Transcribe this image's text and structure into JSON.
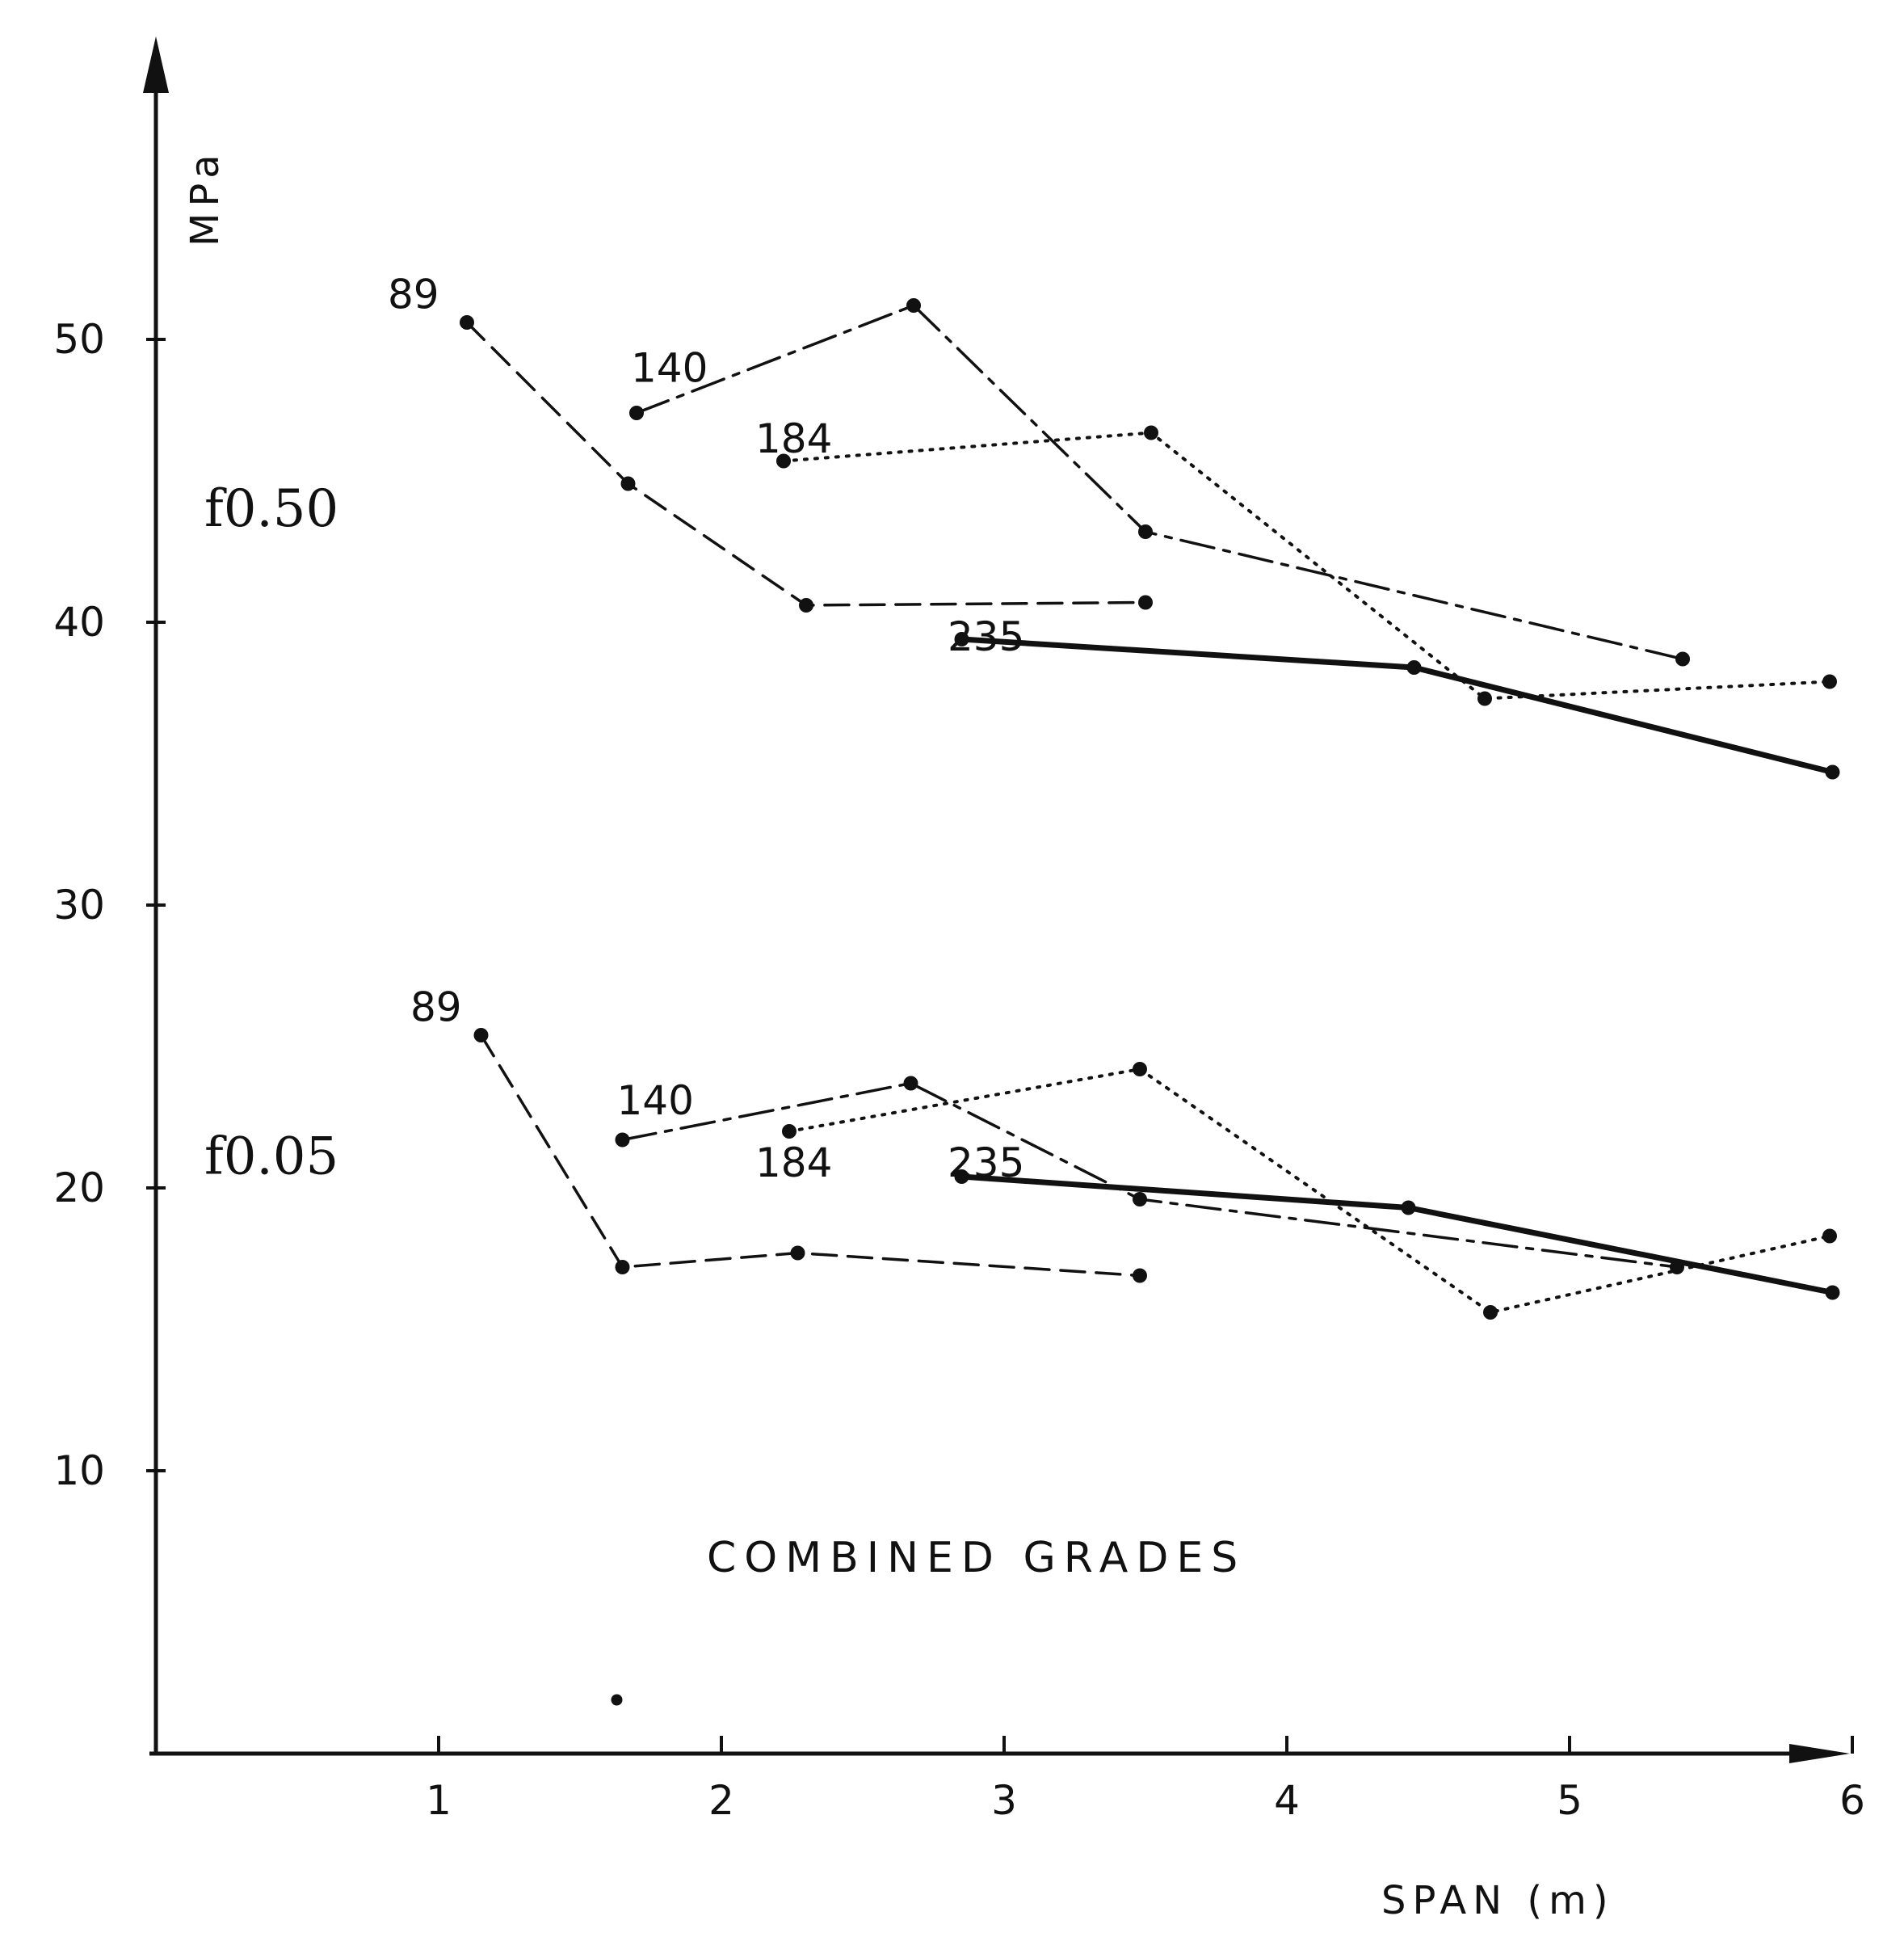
{
  "chart_data": {
    "type": "line",
    "title": "COMBINED GRADES",
    "xlabel": "SPAN (m)",
    "ylabel": "MPa",
    "xlim": [
      0,
      6
    ],
    "ylim": [
      0,
      60
    ],
    "x_ticks": [
      {
        "value": 1,
        "label": "1"
      },
      {
        "value": 2,
        "label": "2"
      },
      {
        "value": 3,
        "label": "3"
      },
      {
        "value": 4,
        "label": "4"
      },
      {
        "value": 5,
        "label": "5"
      },
      {
        "value": 6,
        "label": "6"
      }
    ],
    "y_ticks": [
      {
        "value": 10,
        "label": "10"
      },
      {
        "value": 20,
        "label": "20"
      },
      {
        "value": 30,
        "label": "30"
      },
      {
        "value": 40,
        "label": "40"
      },
      {
        "value": 50,
        "label": "50"
      }
    ],
    "grid": false,
    "groups": [
      {
        "label": "f0.50",
        "anchor": {
          "x": 0.6,
          "y": 43.4
        }
      },
      {
        "label": "f0.05",
        "anchor": {
          "x": 0.6,
          "y": 20.5
        }
      }
    ],
    "series": [
      {
        "group": "f0.50",
        "name": "89",
        "style": "dashed",
        "label_at": {
          "x": 0.82,
          "y": 51.1
        },
        "points": [
          {
            "x": 1.1,
            "y": 50.6
          },
          {
            "x": 1.67,
            "y": 44.9
          },
          {
            "x": 2.3,
            "y": 40.6
          },
          {
            "x": 3.5,
            "y": 40.7
          }
        ]
      },
      {
        "group": "f0.50",
        "name": "140",
        "style": "dash-dot",
        "label_at": {
          "x": 1.68,
          "y": 48.5
        },
        "points": [
          {
            "x": 1.7,
            "y": 47.4
          },
          {
            "x": 2.68,
            "y": 51.2
          },
          {
            "x": 3.5,
            "y": 43.2
          },
          {
            "x": 5.4,
            "y": 38.7
          }
        ]
      },
      {
        "group": "f0.50",
        "name": "184",
        "style": "dotted",
        "label_at": {
          "x": 2.12,
          "y": 46.0
        },
        "points": [
          {
            "x": 2.22,
            "y": 45.7
          },
          {
            "x": 3.52,
            "y": 46.7
          },
          {
            "x": 4.7,
            "y": 37.3
          },
          {
            "x": 5.92,
            "y": 37.9
          }
        ]
      },
      {
        "group": "f0.50",
        "name": "235",
        "style": "solid-bold",
        "label_at": {
          "x": 2.8,
          "y": 39.0
        },
        "points": [
          {
            "x": 2.85,
            "y": 39.4
          },
          {
            "x": 4.45,
            "y": 38.4
          },
          {
            "x": 5.93,
            "y": 34.7
          }
        ]
      },
      {
        "group": "f0.05",
        "name": "89",
        "style": "dashed",
        "label_at": {
          "x": 0.9,
          "y": 25.9
        },
        "points": [
          {
            "x": 1.15,
            "y": 25.4
          },
          {
            "x": 1.65,
            "y": 17.2
          },
          {
            "x": 2.27,
            "y": 17.7
          },
          {
            "x": 3.48,
            "y": 16.9
          }
        ]
      },
      {
        "group": "f0.05",
        "name": "140",
        "style": "dash-dot",
        "label_at": {
          "x": 1.63,
          "y": 22.6
        },
        "points": [
          {
            "x": 1.65,
            "y": 21.7
          },
          {
            "x": 2.67,
            "y": 23.7
          },
          {
            "x": 3.48,
            "y": 19.6
          },
          {
            "x": 5.38,
            "y": 17.2
          }
        ]
      },
      {
        "group": "f0.05",
        "name": "184",
        "style": "dotted",
        "label_at": {
          "x": 2.12,
          "y": 20.4
        },
        "points": [
          {
            "x": 2.24,
            "y": 22.0
          },
          {
            "x": 3.48,
            "y": 24.2
          },
          {
            "x": 4.72,
            "y": 15.6
          },
          {
            "x": 5.92,
            "y": 18.3
          }
        ]
      },
      {
        "group": "f0.05",
        "name": "235",
        "style": "solid-bold",
        "label_at": {
          "x": 2.8,
          "y": 20.4
        },
        "points": [
          {
            "x": 2.85,
            "y": 20.4
          },
          {
            "x": 4.43,
            "y": 19.3
          },
          {
            "x": 5.93,
            "y": 16.3
          }
        ]
      }
    ],
    "stray_points": [
      {
        "x": 1.63,
        "y": 1.9
      }
    ]
  }
}
